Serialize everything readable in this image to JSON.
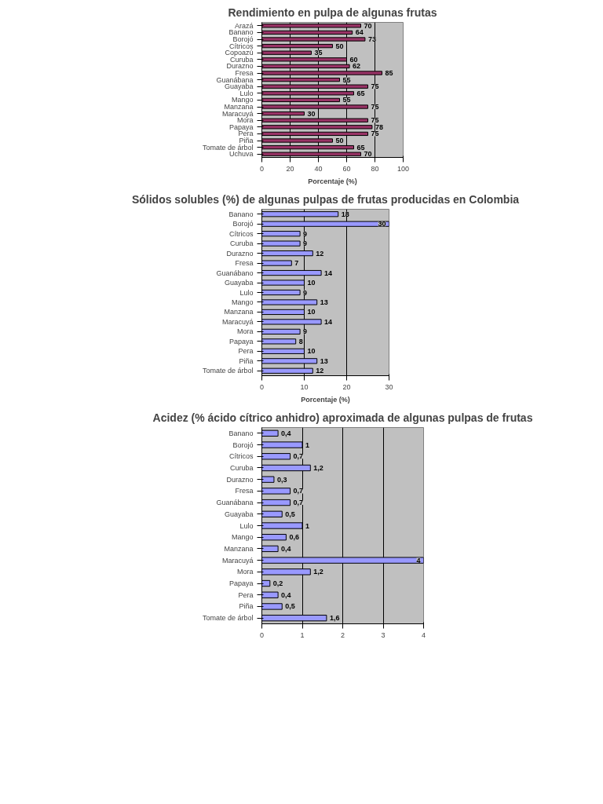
{
  "chart_data": [
    {
      "type": "bar",
      "orientation": "horizontal",
      "title": "Rendimiento en pulpa de algunas frutas",
      "xlabel": "Porcentaje (%)",
      "categories": [
        "Arazá",
        "Banano",
        "Borojó",
        "Cítricos",
        "Copoazú",
        "Curuba",
        "Durazno",
        "Fresa",
        "Guanábana",
        "Guayaba",
        "Lulo",
        "Mango",
        "Manzana",
        "Maracuyá",
        "Mora",
        "Papaya",
        "Pera",
        "Piña",
        "Tomate de árbol",
        "Uchuva"
      ],
      "values": [
        70,
        64,
        73,
        50,
        35,
        60,
        62,
        85,
        55,
        75,
        65,
        55,
        75,
        30,
        75,
        78,
        75,
        50,
        65,
        70
      ],
      "color": "#993366",
      "xlim": [
        0,
        100
      ],
      "xticks": [
        0,
        20,
        40,
        60,
        80,
        100
      ],
      "grid": "x",
      "data_labels": true
    },
    {
      "type": "bar",
      "orientation": "horizontal",
      "title": "Sólidos solubles (%) de algunas pulpas de frutas producidas en Colombia",
      "xlabel": "Porcentaje (%)",
      "categories": [
        "Banano",
        "Borojó",
        "Cítricos",
        "Curuba",
        "Durazno",
        "Fresa",
        "Guanábano",
        "Guayaba",
        "Lulo",
        "Mango",
        "Manzana",
        "Maracuyá",
        "Mora",
        "Papaya",
        "Pera",
        "Piña",
        "Tomate de árbol"
      ],
      "values": [
        18,
        30,
        9,
        9,
        12,
        7,
        14,
        10,
        9,
        13,
        10,
        14,
        9,
        8,
        10,
        13,
        12
      ],
      "color": "#9999ff",
      "xlim": [
        0,
        30
      ],
      "xticks": [
        0,
        10,
        20,
        30
      ],
      "grid": "x",
      "data_labels": true
    },
    {
      "type": "bar",
      "orientation": "horizontal",
      "title": "Acidez (% ácido cítrico anhidro) aproximada de algunas pulpas de frutas",
      "categories": [
        "Banano",
        "Borojó",
        "Cítricos",
        "Curuba",
        "Durazno",
        "Fresa",
        "Guanábana",
        "Guayaba",
        "Lulo",
        "Mango",
        "Manzana",
        "Maracuyá",
        "Mora",
        "Papaya",
        "Pera",
        "Piña",
        "Tomate de árbol"
      ],
      "values": [
        0.4,
        1,
        0.7,
        1.2,
        0.3,
        0.7,
        0.7,
        0.5,
        1,
        0.6,
        0.4,
        4,
        1.2,
        0.2,
        0.4,
        0.5,
        1.6
      ],
      "value_labels": [
        "0,4",
        "1",
        "0,7",
        "1,2",
        "0,3",
        "0,7",
        "0,7",
        "0,5",
        "1",
        "0,6",
        "0,4",
        "4",
        "1,2",
        "0,2",
        "0,4",
        "0,5",
        "1,6"
      ],
      "color": "#9999ff",
      "xlim": [
        0,
        4
      ],
      "xticks": [
        0,
        1,
        2,
        3,
        4
      ],
      "grid": "x"
    }
  ]
}
